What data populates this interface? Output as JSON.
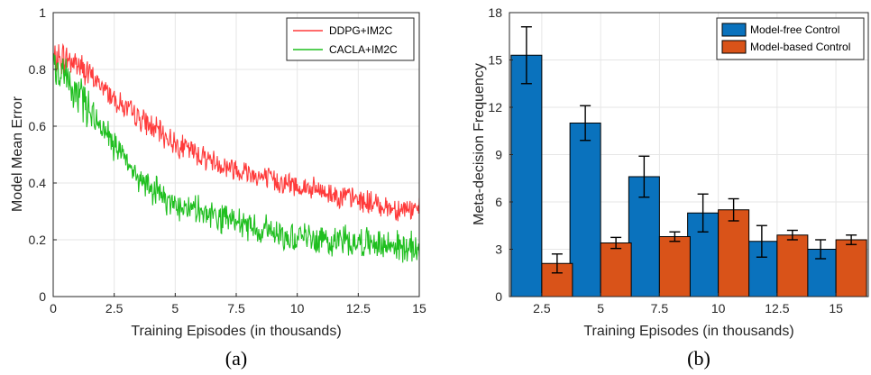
{
  "chart_data": [
    {
      "type": "line",
      "panel_label": "(a)",
      "xlabel": "Training Episodes (in thousands)",
      "ylabel": "Model Mean Error",
      "xlim": [
        0,
        15
      ],
      "ylim": [
        0,
        1
      ],
      "xticks": [
        "0",
        "2.5",
        "5",
        "7.5",
        "10",
        "12.5",
        "15"
      ],
      "yticks": [
        "0",
        "0.2",
        "0.4",
        "0.6",
        "0.8",
        "1"
      ],
      "grid": true,
      "legend": "top-right",
      "series": [
        {
          "name": "DDPG+IM2C",
          "color": "#ff3b3b",
          "trend_x": [
            0,
            0.5,
            1,
            1.5,
            2,
            2.5,
            3,
            3.5,
            4,
            4.5,
            5,
            5.5,
            6,
            6.5,
            7,
            7.5,
            8,
            8.5,
            9,
            9.5,
            10,
            10.5,
            11,
            11.5,
            12,
            12.5,
            13,
            13.5,
            14,
            14.5,
            15
          ],
          "trend_y": [
            0.83,
            0.84,
            0.82,
            0.78,
            0.74,
            0.7,
            0.66,
            0.63,
            0.6,
            0.57,
            0.54,
            0.52,
            0.5,
            0.48,
            0.46,
            0.45,
            0.44,
            0.42,
            0.41,
            0.4,
            0.39,
            0.38,
            0.37,
            0.36,
            0.35,
            0.34,
            0.33,
            0.32,
            0.31,
            0.31,
            0.3
          ],
          "noise_amp": 0.035
        },
        {
          "name": "CACLA+IM2C",
          "color": "#1fbf1f",
          "trend_x": [
            0,
            0.5,
            1,
            1.5,
            2,
            2.5,
            3,
            3.5,
            4,
            4.5,
            5,
            5.5,
            6,
            6.5,
            7,
            7.5,
            8,
            8.5,
            9,
            9.5,
            10,
            10.5,
            11,
            11.5,
            12,
            12.5,
            13,
            13.5,
            14,
            14.5,
            15
          ],
          "trend_y": [
            0.8,
            0.77,
            0.72,
            0.66,
            0.6,
            0.53,
            0.47,
            0.42,
            0.38,
            0.35,
            0.33,
            0.31,
            0.3,
            0.28,
            0.27,
            0.26,
            0.25,
            0.24,
            0.23,
            0.22,
            0.21,
            0.21,
            0.2,
            0.2,
            0.2,
            0.19,
            0.19,
            0.18,
            0.18,
            0.17,
            0.17
          ],
          "noise_amp": 0.045
        }
      ]
    },
    {
      "type": "bar",
      "panel_label": "(b)",
      "xlabel": "Training Episodes (in thousands)",
      "ylabel": "Meta-decision Frequency",
      "categories": [
        "2.5",
        "5",
        "7.5",
        "10",
        "12.5",
        "15"
      ],
      "ylim": [
        0,
        18
      ],
      "yticks": [
        "0",
        "3",
        "6",
        "9",
        "12",
        "15",
        "18"
      ],
      "grid": true,
      "legend": "top-right",
      "series": [
        {
          "name": "Model-free Control",
          "color": "#0a72bd",
          "values": [
            15.3,
            11.0,
            7.6,
            5.3,
            3.5,
            3.0
          ],
          "err": [
            1.8,
            1.1,
            1.3,
            1.2,
            1.0,
            0.6
          ]
        },
        {
          "name": "Model-based Control",
          "color": "#d95319",
          "values": [
            2.1,
            3.4,
            3.8,
            5.5,
            3.9,
            3.6
          ],
          "err": [
            0.6,
            0.35,
            0.3,
            0.7,
            0.3,
            0.3
          ]
        }
      ]
    }
  ]
}
